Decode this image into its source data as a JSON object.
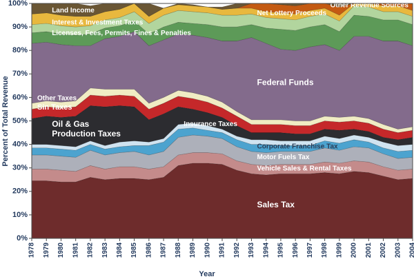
{
  "chart_data": {
    "type": "area",
    "stacked": true,
    "xlabel": "Year",
    "ylabel": "Percent of Total Revenue",
    "ylim": [
      0,
      100
    ],
    "yticks": [
      "0%",
      "10%",
      "20%",
      "30%",
      "40%",
      "50%",
      "60%",
      "70%",
      "80%",
      "90%",
      "100%"
    ],
    "x": [
      "1978",
      "1979",
      "1980",
      "1981",
      "1982",
      "1983",
      "1984",
      "1985",
      "1986",
      "1987",
      "1988",
      "1989",
      "1990",
      "1991",
      "1992",
      "1993",
      "1994",
      "1995",
      "1996",
      "1997",
      "1998",
      "1999",
      "2000",
      "2001",
      "2002",
      "2003",
      "2004"
    ],
    "series": [
      {
        "name": "Sales Tax",
        "color": "#6e2c2c",
        "values": [
          24.5,
          24.5,
          24,
          24,
          26,
          25,
          25.5,
          25.5,
          25,
          26,
          31,
          32,
          32,
          31.5,
          29,
          27.5,
          27,
          27.5,
          27.5,
          27.5,
          28,
          27.5,
          28.5,
          28,
          26.5,
          25,
          25.5
        ]
      },
      {
        "name": "Vehicle Sales & Rental Taxes",
        "color": "#c48b8b",
        "values": [
          5,
          5,
          5,
          4.5,
          5,
          4.5,
          5,
          5,
          4.5,
          4.5,
          4.5,
          4.5,
          4.5,
          4.5,
          4,
          4,
          4,
          4,
          4,
          4,
          4.5,
          4.5,
          4.5,
          4.5,
          4,
          4,
          4
        ]
      },
      {
        "name": "Motor Fuels Tax",
        "color": "#adb0ba",
        "values": [
          6,
          6,
          6,
          6,
          6.5,
          6,
          6,
          6.5,
          6,
          6.5,
          7.5,
          7.5,
          7,
          6.5,
          6,
          5.5,
          5.5,
          5.5,
          5.5,
          5.5,
          6,
          5.5,
          6,
          6,
          5.5,
          5,
          5
        ]
      },
      {
        "name": "Corporate Franchise Tax",
        "color": "#4ca3cf",
        "values": [
          3,
          3,
          3,
          3,
          2.5,
          2.5,
          2.5,
          2.5,
          4,
          4,
          3.5,
          3,
          2.5,
          2.5,
          3,
          3,
          3.5,
          2.5,
          2.5,
          2.5,
          3,
          3,
          3,
          2.5,
          2.5,
          3,
          3
        ]
      },
      {
        "name": "Insurance Taxes",
        "color": "#d0e3f0",
        "values": [
          1.5,
          1.5,
          1.5,
          1.5,
          1.5,
          1.5,
          2,
          2,
          1.5,
          1.5,
          2,
          2,
          2,
          1.5,
          1.5,
          2,
          2,
          2,
          2,
          2,
          2,
          2,
          2,
          2,
          2.5,
          2.5,
          2.5
        ]
      },
      {
        "name": "Oil & Gas Production Taxes",
        "color": "#2c2c30",
        "values": [
          11,
          12,
          12,
          13,
          15,
          16.5,
          15.5,
          14.5,
          9.5,
          10.5,
          7.5,
          6,
          5.5,
          5,
          4.5,
          3,
          3,
          3.5,
          3,
          3,
          3,
          3.5,
          2.5,
          2.5,
          2,
          2.5,
          3
        ]
      },
      {
        "name": "Sin Taxes",
        "color": "#c5282a",
        "values": [
          4,
          4,
          4,
          4,
          4.5,
          4.5,
          4.5,
          4.5,
          4.5,
          4.5,
          4.5,
          4.5,
          4.5,
          4,
          4,
          3.5,
          3.5,
          3.5,
          3.5,
          3.5,
          3.5,
          3.5,
          3.5,
          3.5,
          3.5,
          3,
          3
        ]
      },
      {
        "name": "Other Taxes",
        "color": "#f0ecc4",
        "values": [
          2.5,
          2.5,
          2.5,
          2.5,
          3,
          3,
          2.5,
          3,
          2.5,
          2.5,
          2.5,
          2.5,
          2.5,
          2.5,
          2,
          2,
          2,
          2,
          2,
          2,
          2,
          2,
          2,
          2,
          2,
          1.5,
          1.5
        ]
      },
      {
        "name": "Federal Funds",
        "color": "#836b8c",
        "values": [
          25.5,
          25,
          24.5,
          23.5,
          18,
          21.5,
          22.5,
          24.5,
          24.5,
          24.5,
          24,
          24.5,
          25,
          26,
          30,
          35,
          32.5,
          30,
          30,
          31.5,
          30.5,
          28.5,
          34,
          35,
          35.5,
          37.5,
          34.5
        ]
      },
      {
        "name": "Licenses, Fees, Permits, Fines & Penalties",
        "color": "#5d9a58",
        "values": [
          4.5,
          4.5,
          4.5,
          4.5,
          5,
          4.5,
          4.5,
          4.5,
          5,
          5.5,
          5,
          5,
          5.5,
          6,
          6,
          5.5,
          6.5,
          8.5,
          8.5,
          8.5,
          8.5,
          8,
          9,
          8.5,
          9,
          9,
          9
        ]
      },
      {
        "name": "Interest & Investment Taxes",
        "color": "#b2d59e",
        "values": [
          3.5,
          3.5,
          3.5,
          3.5,
          3.5,
          3.5,
          3.5,
          4,
          4.5,
          5,
          5,
          5,
          5,
          5,
          5,
          4.5,
          4.5,
          4.5,
          4.5,
          4.5,
          4.5,
          4.5,
          4,
          4,
          3.5,
          3.5,
          3.5
        ]
      },
      {
        "name": "Land Income",
        "color": "#e8b83e",
        "values": [
          4.5,
          4.5,
          4.5,
          4.5,
          4,
          3.5,
          3.5,
          3.5,
          3,
          3,
          2.5,
          2.5,
          2.5,
          2.5,
          3,
          2.5,
          2.5,
          2.5,
          2.5,
          2.5,
          2.5,
          2.5,
          2.5,
          2.5,
          2.5,
          2.5,
          2.5
        ]
      },
      {
        "name": "Net Lottery Proceeds",
        "color": "#c45a12",
        "values": [
          0,
          0,
          0,
          0,
          0,
          0,
          0,
          0,
          0,
          0,
          0,
          0,
          0,
          0,
          0,
          2.5,
          3.5,
          3.5,
          3.5,
          3.5,
          3.5,
          3.5,
          3,
          3,
          3,
          3,
          3
        ]
      },
      {
        "name": "Other Revenue Sources",
        "color": "#6a5634",
        "values": [
          4.5,
          4,
          5,
          5.5,
          4.5,
          3.5,
          3,
          0,
          5.5,
          0,
          0.5,
          0.5,
          0,
          1,
          2,
          0,
          0.5,
          1,
          1.5,
          0,
          0.5,
          3,
          0,
          0,
          2,
          2.5,
          5
        ]
      }
    ],
    "labels": [
      {
        "series": "Land Income",
        "text": "Land Income",
        "color": "#ffffff",
        "size": 10,
        "x": "1979",
        "y": 97
      },
      {
        "series": "Interest & Investment Taxes",
        "text": "Interest & Investment Taxes",
        "color": "#ffffff",
        "size": 10,
        "x": "1979",
        "y": 91.8
      },
      {
        "series": "Licenses, Fees, Permits, Fines & Penalties",
        "text": "Licenses, Fees, Permits, Fines & Penalties",
        "color": "#ffffff",
        "size": 10,
        "x": "1979",
        "y": 87.3
      },
      {
        "series": "Federal Funds",
        "text": "Federal Funds",
        "color": "#ffffff",
        "size": 12,
        "x": "1993",
        "y": 66.2
      },
      {
        "series": "Net Lottery Proceeds",
        "text": "Net Lottery Proceeds",
        "color": "#ffffff",
        "size": 10,
        "x": "1993",
        "y": 95.8
      },
      {
        "series": "Other Revenue Sources",
        "text": "Other Revenue Sources",
        "color": "#ffffff",
        "size": 10,
        "x": "1998",
        "y": 99.2
      },
      {
        "series": "Other Taxes",
        "text": "Other Taxes",
        "color": "#ffffff",
        "size": 10,
        "x": "1978",
        "y": 59.6
      },
      {
        "series": "Sin Taxes",
        "text": "Sin Taxes",
        "color": "#ffffff",
        "size": 11,
        "x": "1978",
        "y": 55.7
      },
      {
        "series": "Oil & Gas Production Taxes",
        "text": "Oil & Gas",
        "color": "#ffffff",
        "size": 12,
        "x": "1979",
        "y": 48.5
      },
      {
        "series": "Oil & Gas Production Taxes",
        "text": "Production Taxes",
        "color": "#ffffff",
        "size": 12,
        "x": "1979",
        "y": 44.4
      },
      {
        "series": "Insurance Taxes",
        "text": "Insurance Taxes",
        "color": "#ffffff",
        "size": 10,
        "x": "1988",
        "y": 48.6
      },
      {
        "series": "Corporate Franchise Tax",
        "text": "Corporate Franchise Tax",
        "color": "#2b3d57",
        "size": 10,
        "x": "1993",
        "y": 39.1
      },
      {
        "series": "Motor Fuels Tax",
        "text": "Motor Fuels Tax",
        "color": "#ffffff",
        "size": 10,
        "x": "1993",
        "y": 34.5
      },
      {
        "series": "Vehicle Sales & Rental Taxes",
        "text": "Vehicle Sales & Rental Taxes",
        "color": "#ffffff",
        "size": 10,
        "x": "1993",
        "y": 29.6
      },
      {
        "series": "Sales Tax",
        "text": "Sales Tax",
        "color": "#ffffff",
        "size": 12,
        "x": "1993",
        "y": 14.2
      }
    ]
  }
}
